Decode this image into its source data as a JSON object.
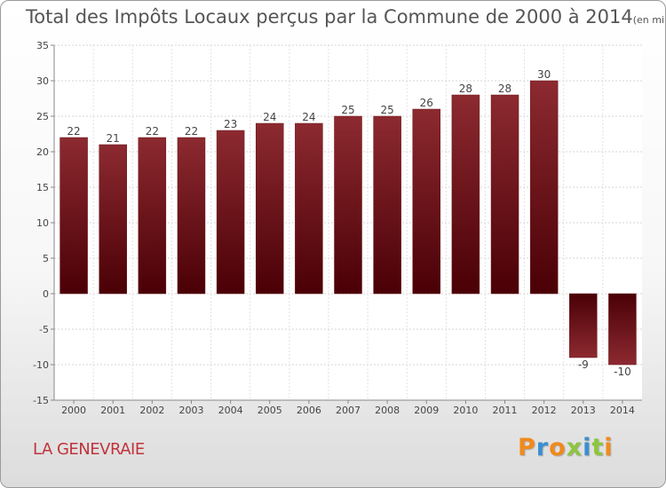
{
  "chart_data": {
    "type": "bar",
    "title": "Total des Impôts Locaux perçus par la Commune de 2000 à 2014",
    "subtitle": "(en milliers d'€)",
    "categories": [
      "2000",
      "2001",
      "2002",
      "2003",
      "2004",
      "2005",
      "2006",
      "2007",
      "2008",
      "2009",
      "2010",
      "2011",
      "2012",
      "2013",
      "2014"
    ],
    "values": [
      22,
      21,
      22,
      22,
      23,
      24,
      24,
      25,
      25,
      26,
      28,
      28,
      30,
      -9,
      -10
    ],
    "ylim": [
      -15,
      35
    ],
    "yticks": [
      "-15",
      "-10",
      "-5",
      "0",
      "5",
      "10",
      "15",
      "20",
      "25",
      "30",
      "35"
    ],
    "xlabel": "",
    "ylabel": "",
    "grid": true,
    "bar_color": "#7a1a1f",
    "bar_color_dark": "#4a0006"
  },
  "footer": {
    "commune": "LA GENEVRAIE",
    "logo": "Proxiti"
  },
  "colors": {
    "commune_text": "#c0343c",
    "logo_letters": [
      "#f08a1c",
      "#3a8fd1",
      "#f08a1c",
      "#8cc63f",
      "#3a8fd1",
      "#8cc63f",
      "#f08a1c"
    ]
  }
}
